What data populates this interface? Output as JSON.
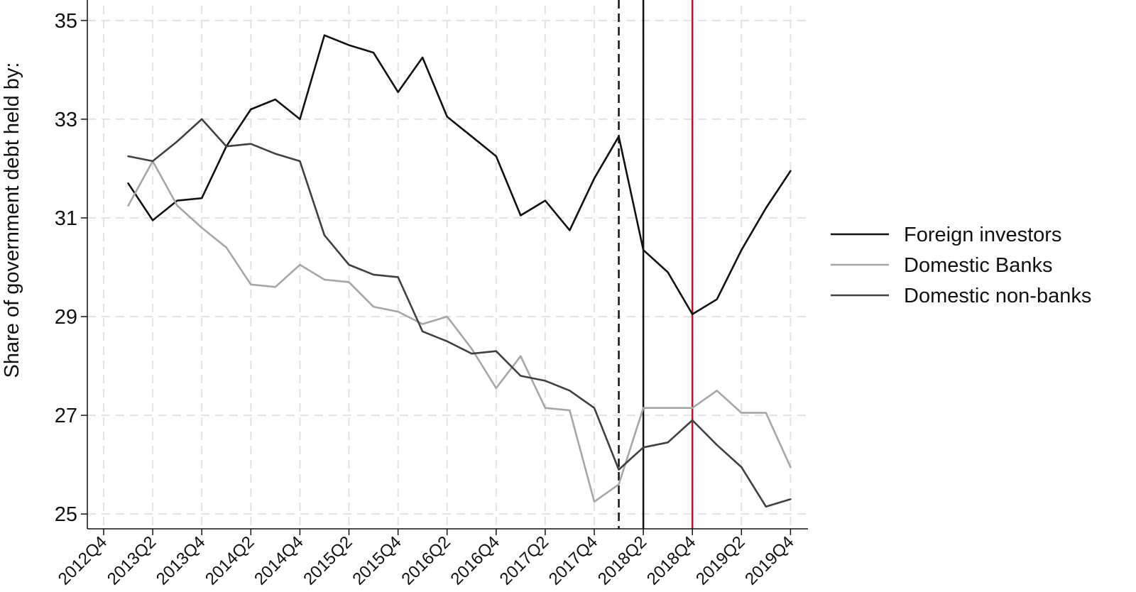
{
  "chart_data": {
    "type": "line",
    "title": "",
    "xlabel": "",
    "ylabel": "Share of government debt held by:",
    "x": [
      "2013Q1",
      "2013Q2",
      "2013Q3",
      "2013Q4",
      "2014Q1",
      "2014Q2",
      "2014Q3",
      "2014Q4",
      "2015Q1",
      "2015Q2",
      "2015Q3",
      "2015Q4",
      "2016Q1",
      "2016Q2",
      "2016Q3",
      "2016Q4",
      "2017Q1",
      "2017Q2",
      "2017Q3",
      "2017Q4",
      "2018Q1",
      "2018Q2",
      "2018Q3",
      "2018Q4",
      "2019Q1",
      "2019Q2",
      "2019Q3",
      "2019Q4"
    ],
    "xticks": [
      "2012Q4",
      "2013Q2",
      "2013Q4",
      "2014Q2",
      "2014Q4",
      "2015Q2",
      "2015Q4",
      "2016Q2",
      "2016Q4",
      "2017Q2",
      "2017Q4",
      "2018Q2",
      "2018Q4",
      "2019Q2",
      "2019Q4"
    ],
    "yticks": [
      25,
      27,
      29,
      31,
      33,
      35
    ],
    "ylim": [
      24.7,
      35.3
    ],
    "grid": true,
    "legend_position": "right",
    "series": [
      {
        "name": "Foreign investors",
        "color": "#111111",
        "values": [
          31.7,
          30.95,
          31.35,
          31.4,
          32.45,
          33.2,
          33.4,
          33.0,
          34.7,
          34.5,
          34.35,
          33.55,
          34.25,
          33.05,
          32.65,
          32.25,
          31.05,
          31.35,
          30.75,
          31.8,
          32.65,
          30.35,
          29.9,
          29.05,
          29.35,
          30.35,
          31.2,
          31.95
        ]
      },
      {
        "name": "Domestic Banks",
        "color": "#a6a6a6",
        "values": [
          31.25,
          32.15,
          31.25,
          30.8,
          30.4,
          29.65,
          29.6,
          30.05,
          29.75,
          29.7,
          29.2,
          29.1,
          28.85,
          29.0,
          28.35,
          27.55,
          28.2,
          27.15,
          27.1,
          25.25,
          25.6,
          27.15,
          27.15,
          27.15,
          27.5,
          27.05,
          27.05,
          25.95
        ]
      },
      {
        "name": "Domestic non-banks",
        "color": "#404040",
        "values": [
          32.25,
          32.15,
          32.55,
          33.0,
          32.45,
          32.5,
          32.3,
          32.15,
          30.65,
          30.05,
          29.85,
          29.8,
          28.7,
          28.5,
          28.25,
          28.3,
          27.8,
          27.7,
          27.5,
          27.15,
          25.9,
          26.35,
          26.45,
          26.9,
          26.4,
          25.95,
          25.15,
          25.3
        ]
      }
    ],
    "vertical_lines": [
      {
        "x": "2018Q1",
        "style": "dashed",
        "color": "#111111"
      },
      {
        "x": "2018Q2",
        "style": "solid",
        "color": "#111111"
      },
      {
        "x": "2018Q4",
        "style": "solid",
        "color": "#b2182b"
      }
    ]
  }
}
